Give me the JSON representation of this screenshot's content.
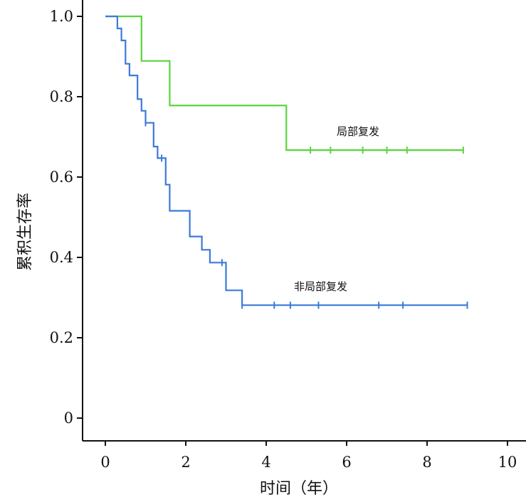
{
  "chart_data": {
    "type": "line",
    "xlabel": "时间（年）",
    "ylabel": "累积生存率",
    "xlim": [
      0,
      10
    ],
    "ylim": [
      0,
      1.0
    ],
    "x_ticks": [
      "0",
      "2",
      "4",
      "6",
      "8",
      "10"
    ],
    "y_ticks": [
      "0",
      "0.2",
      "0.4",
      "0.6",
      "0.8",
      "1.0"
    ],
    "grid": false,
    "series": [
      {
        "name": "局部复发",
        "color": "#5ad43c",
        "step_x": [
          0,
          0.9,
          0.9,
          1.6,
          1.6,
          4.5,
          4.5,
          8.9
        ],
        "step_y": [
          1.0,
          1.0,
          0.889,
          0.889,
          0.778,
          0.778,
          0.667,
          0.667
        ],
        "censored_x": [
          5.1,
          5.6,
          6.4,
          7.0,
          7.5,
          8.9
        ],
        "censored_y": [
          0.667,
          0.667,
          0.667,
          0.667,
          0.667,
          0.667
        ]
      },
      {
        "name": "非局部复发",
        "color": "#3c7ad8",
        "step_x": [
          0,
          0.3,
          0.3,
          0.4,
          0.4,
          0.5,
          0.5,
          0.6,
          0.6,
          0.8,
          0.8,
          0.9,
          0.9,
          1.0,
          1.0,
          1.2,
          1.2,
          1.3,
          1.3,
          1.5,
          1.5,
          1.6,
          1.6,
          2.1,
          2.1,
          2.4,
          2.4,
          2.6,
          2.6,
          3.0,
          3.0,
          3.4,
          3.4,
          9.0
        ],
        "step_y": [
          1.0,
          1.0,
          0.97,
          0.97,
          0.94,
          0.94,
          0.882,
          0.882,
          0.853,
          0.853,
          0.794,
          0.794,
          0.765,
          0.765,
          0.735,
          0.735,
          0.676,
          0.676,
          0.647,
          0.647,
          0.581,
          0.581,
          0.516,
          0.516,
          0.452,
          0.452,
          0.419,
          0.419,
          0.387,
          0.387,
          0.318,
          0.318,
          0.281,
          0.281
        ],
        "censored_x": [
          1.0,
          1.4,
          2.9,
          3.4,
          4.2,
          4.6,
          5.3,
          6.8,
          7.4,
          9.0
        ],
        "censored_y": [
          0.735,
          0.647,
          0.387,
          0.281,
          0.281,
          0.281,
          0.281,
          0.281,
          0.281,
          0.281
        ]
      }
    ]
  }
}
